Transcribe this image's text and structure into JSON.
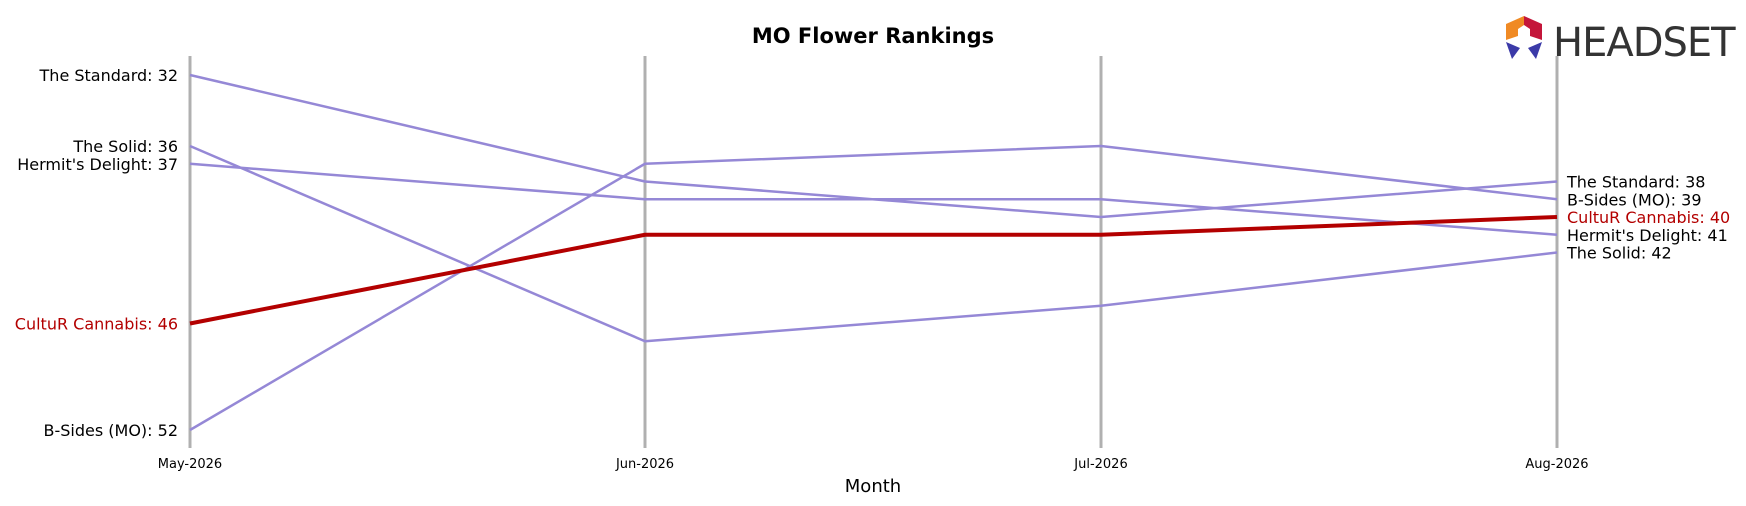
{
  "brand": {
    "logo_text": "HEADSET",
    "logo_icon": "headset-hexagon-icon"
  },
  "chart_data": {
    "type": "line",
    "title": "MO Flower Rankings",
    "xlabel": "Month",
    "ylabel": "",
    "categories": [
      "May-2026",
      "Jun-2026",
      "Jul-2026",
      "Aug-2026"
    ],
    "y_inverted": true,
    "ylim": [
      52,
      32
    ],
    "grid": "vertical lines at each month",
    "colors": {
      "highlight": "#b30000",
      "other": "#9588d6",
      "gridline": "#b0b0b0"
    },
    "highlight": "CultuR Cannabis",
    "series": [
      {
        "name": "The Standard",
        "values": [
          32,
          38,
          40,
          38
        ]
      },
      {
        "name": "The Solid",
        "values": [
          36,
          47,
          45,
          42
        ]
      },
      {
        "name": "Hermit's Delight",
        "values": [
          37,
          39,
          39,
          41
        ]
      },
      {
        "name": "CultuR Cannabis",
        "values": [
          46,
          41,
          41,
          40
        ]
      },
      {
        "name": "B-Sides (MO)",
        "values": [
          52,
          37,
          36,
          39
        ]
      }
    ],
    "start_labels": [
      {
        "series": "The Standard",
        "text": "The Standard: 32"
      },
      {
        "series": "The Solid",
        "text": "The Solid: 36"
      },
      {
        "series": "Hermit's Delight",
        "text": "Hermit's Delight: 37"
      },
      {
        "series": "CultuR Cannabis",
        "text": "CultuR Cannabis: 46"
      },
      {
        "series": "B-Sides (MO)",
        "text": "B-Sides (MO): 52"
      }
    ],
    "end_labels": [
      {
        "series": "The Standard",
        "text": "The Standard: 38"
      },
      {
        "series": "B-Sides (MO)",
        "text": "B-Sides (MO): 39"
      },
      {
        "series": "CultuR Cannabis",
        "text": "CultuR Cannabis: 40"
      },
      {
        "series": "Hermit's Delight",
        "text": "Hermit's Delight: 41"
      },
      {
        "series": "The Solid",
        "text": "The Solid: 42"
      }
    ]
  }
}
